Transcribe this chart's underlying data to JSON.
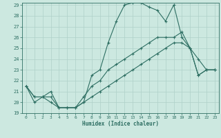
{
  "xlabel": "Humidex (Indice chaleur)",
  "bg_color": "#cce8e0",
  "line_color": "#2d6e62",
  "grid_color": "#aed0c8",
  "xlim": [
    -0.5,
    23.5
  ],
  "ylim": [
    19,
    29.2
  ],
  "xticks": [
    0,
    1,
    2,
    3,
    4,
    5,
    6,
    7,
    8,
    9,
    10,
    11,
    12,
    13,
    14,
    15,
    16,
    17,
    18,
    19,
    20,
    21,
    22,
    23
  ],
  "yticks": [
    19,
    20,
    21,
    22,
    23,
    24,
    25,
    26,
    27,
    28,
    29
  ],
  "line1_x": [
    0,
    1,
    2,
    3,
    4,
    5,
    6,
    7,
    8,
    9,
    10,
    11,
    12,
    13,
    14,
    15,
    16,
    17,
    18,
    19,
    20,
    21,
    22,
    23
  ],
  "line1_y": [
    21.5,
    20.0,
    20.5,
    21.0,
    19.5,
    19.5,
    19.5,
    20.0,
    22.5,
    23.0,
    25.5,
    27.5,
    29.0,
    29.2,
    29.2,
    28.8,
    28.5,
    27.5,
    29.0,
    26.0,
    25.0,
    24.0,
    23.0,
    23.0
  ],
  "line2_x": [
    0,
    1,
    2,
    3,
    4,
    5,
    6,
    7,
    8,
    9,
    10,
    11,
    12,
    13,
    14,
    15,
    16,
    17,
    18,
    19,
    20,
    21,
    22,
    23
  ],
  "line2_y": [
    21.5,
    20.5,
    20.5,
    20.5,
    19.5,
    19.5,
    19.5,
    20.5,
    21.5,
    22.0,
    23.0,
    23.5,
    24.0,
    24.5,
    25.0,
    25.5,
    26.0,
    26.0,
    26.0,
    26.5,
    25.0,
    22.5,
    23.0,
    23.0
  ],
  "line3_x": [
    0,
    1,
    2,
    3,
    4,
    5,
    6,
    7,
    8,
    9,
    10,
    11,
    12,
    13,
    14,
    15,
    16,
    17,
    18,
    19,
    20,
    21,
    22,
    23
  ],
  "line3_y": [
    21.5,
    20.5,
    20.5,
    20.0,
    19.5,
    19.5,
    19.5,
    20.0,
    20.5,
    21.0,
    21.5,
    22.0,
    22.5,
    23.0,
    23.5,
    24.0,
    24.5,
    25.0,
    25.5,
    25.5,
    25.0,
    22.5,
    23.0,
    23.0
  ]
}
